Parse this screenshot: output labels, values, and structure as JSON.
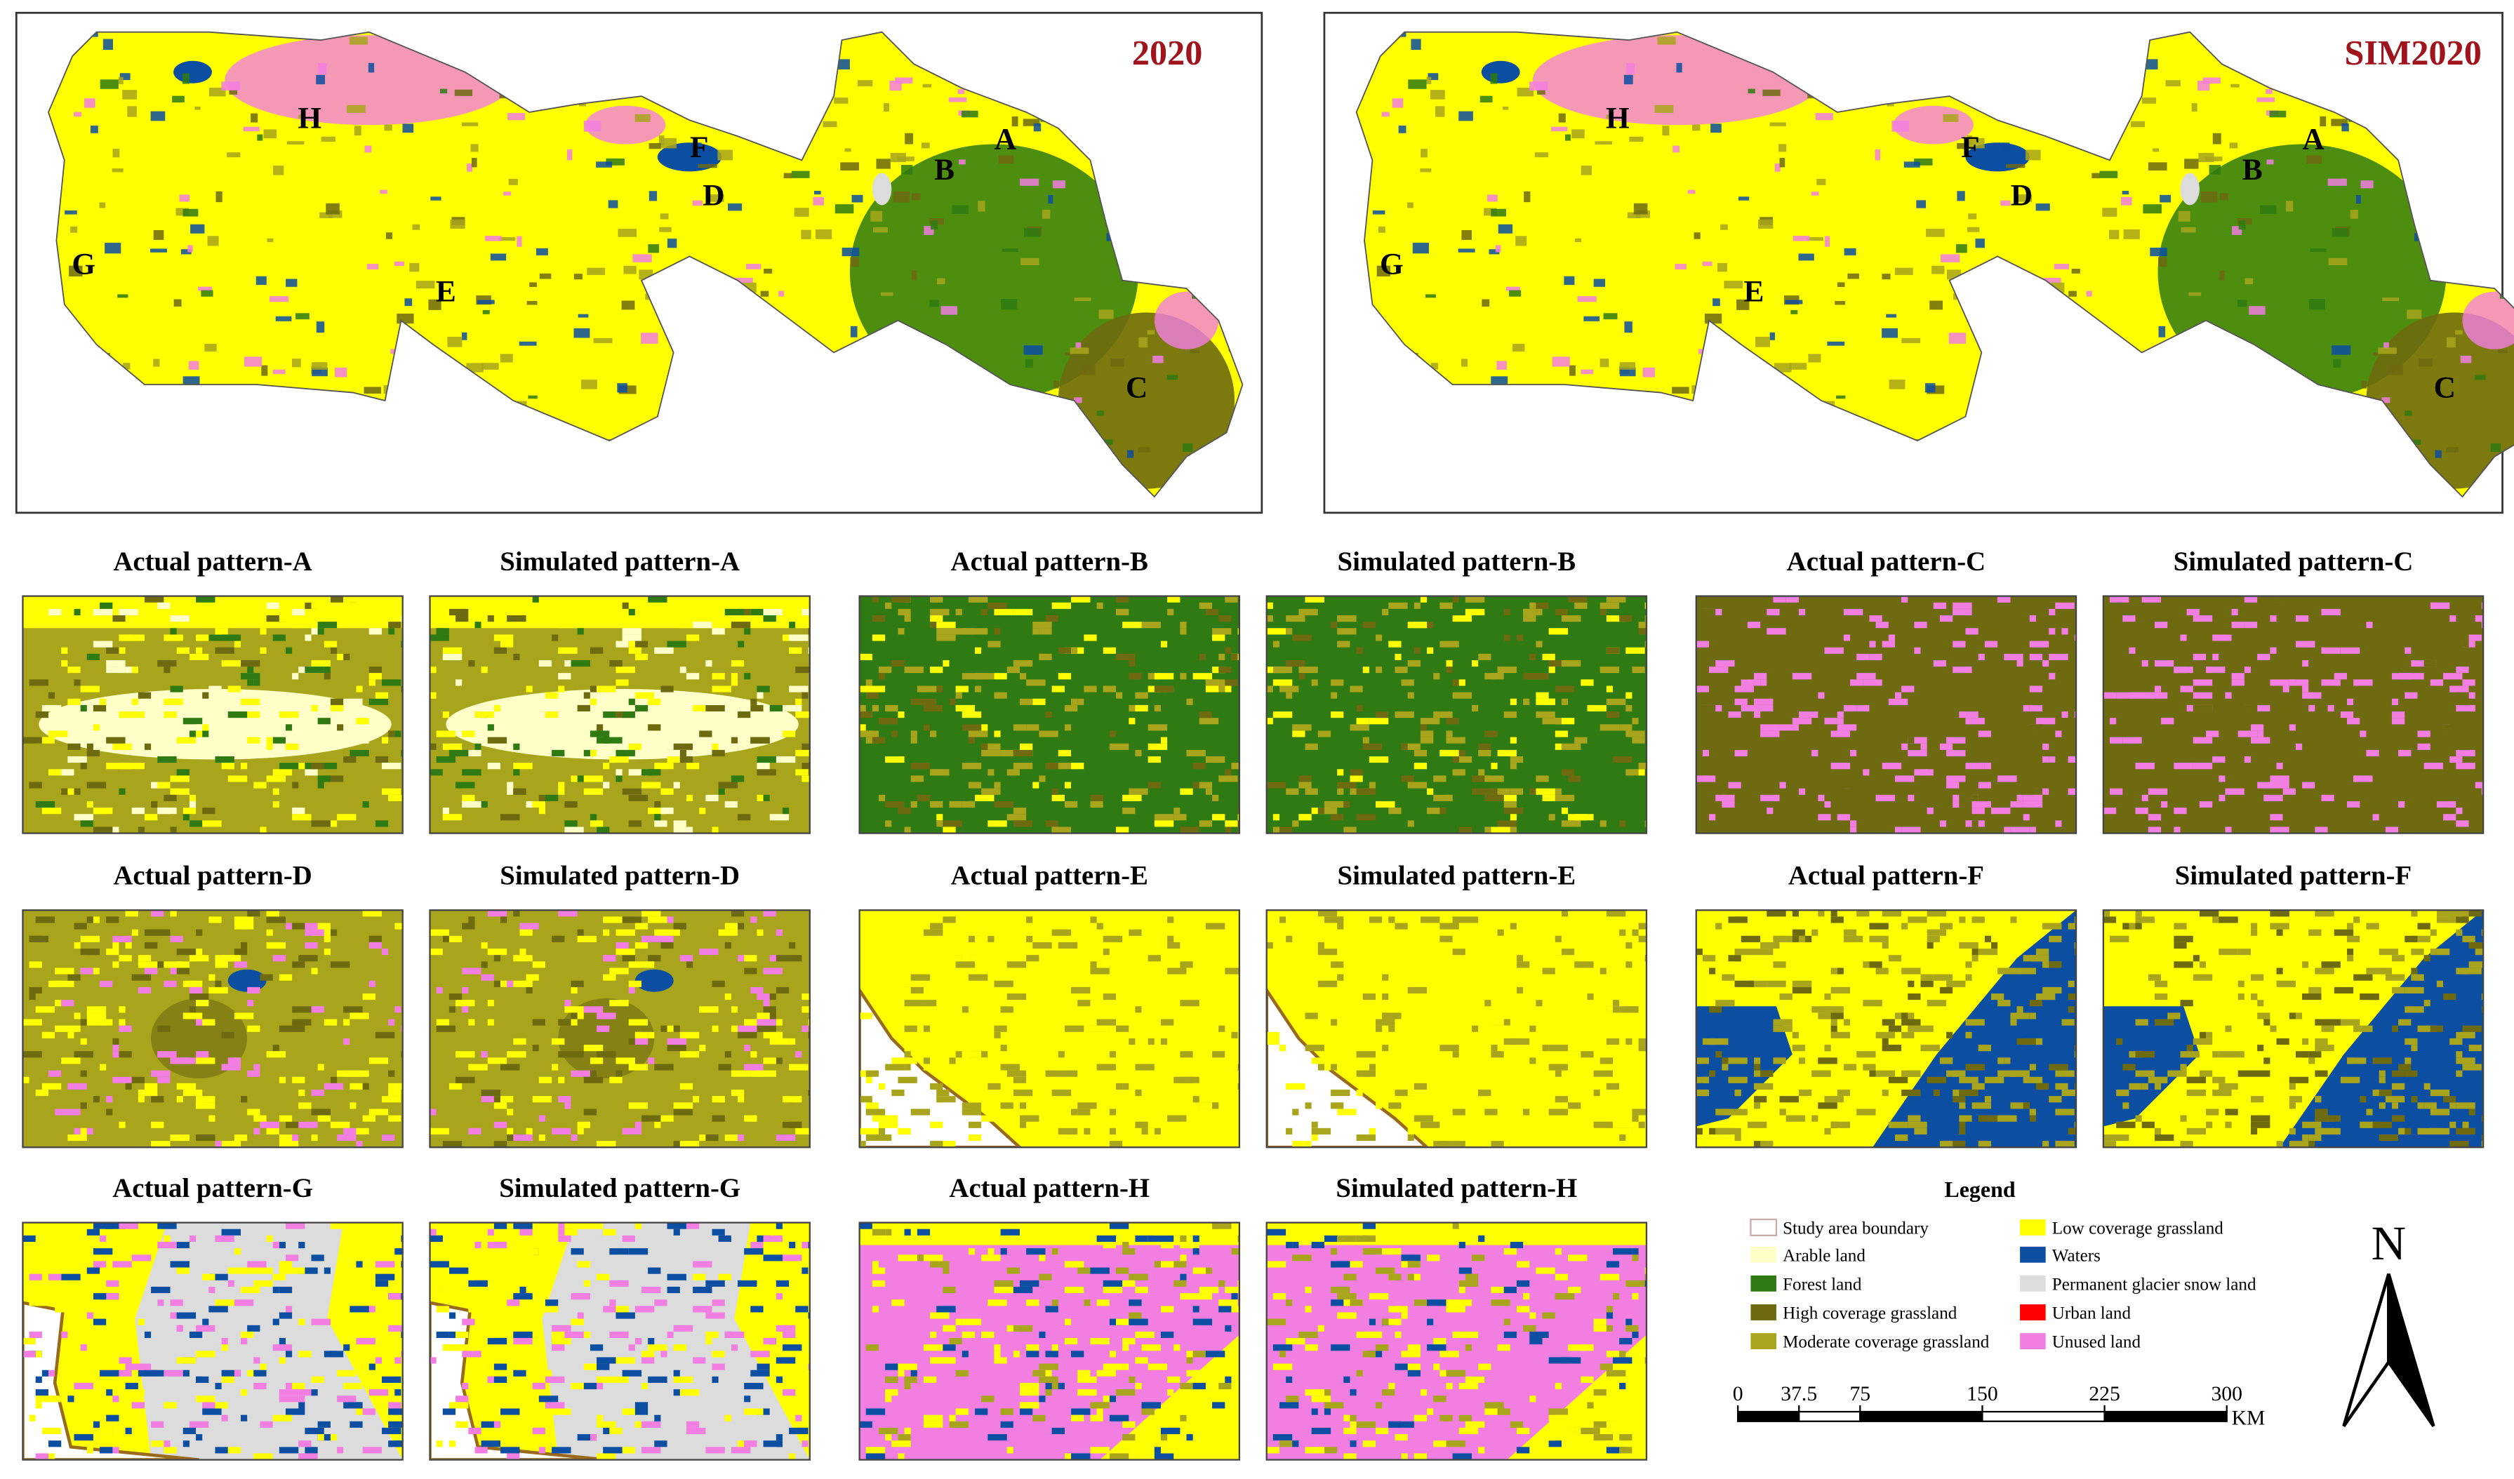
{
  "maps": [
    {
      "title": "2020",
      "labels": [
        "H",
        "A",
        "F",
        "B",
        "D",
        "G",
        "E",
        "C"
      ]
    },
    {
      "title": "SIM2020",
      "labels": [
        "H",
        "A",
        "F",
        "B",
        "D",
        "G",
        "E",
        "C"
      ]
    }
  ],
  "panels": [
    {
      "title": "Actual pattern-A"
    },
    {
      "title": "Simulated pattern-A"
    },
    {
      "title": "Actual pattern-B"
    },
    {
      "title": "Simulated pattern-B"
    },
    {
      "title": "Actual pattern-C"
    },
    {
      "title": "Simulated pattern-C"
    },
    {
      "title": "Actual pattern-D"
    },
    {
      "title": "Simulated pattern-D"
    },
    {
      "title": "Actual pattern-E"
    },
    {
      "title": "Simulated pattern-E"
    },
    {
      "title": "Actual pattern-F"
    },
    {
      "title": "Simulated pattern-F"
    },
    {
      "title": "Actual pattern-G"
    },
    {
      "title": "Simulated pattern-G"
    },
    {
      "title": "Actual pattern-H"
    },
    {
      "title": "Simulated pattern-H"
    }
  ],
  "legend": {
    "title": "Legend",
    "items": [
      {
        "label": "Study area boundary",
        "color": "#ffffff"
      },
      {
        "label": "Arable land",
        "color": "#ffffc8"
      },
      {
        "label": "Forest land",
        "color": "#2f7a12"
      },
      {
        "label": "High coverage grassland",
        "color": "#6e6a10"
      },
      {
        "label": "Moderate coverage grassland",
        "color": "#a8a41c"
      },
      {
        "label": "Low coverage grassland",
        "color": "#ffff00"
      },
      {
        "label": "Waters",
        "color": "#0b4ea2"
      },
      {
        "label": "Permanent glacier snow land",
        "color": "#dcdcdc"
      },
      {
        "label": "Urban land",
        "color": "#ff0000"
      },
      {
        "label": "Unused land",
        "color": "#f27ee2"
      }
    ]
  },
  "scale_bar": {
    "ticks": [
      0,
      37.5,
      75,
      150,
      225,
      300
    ],
    "unit": "KM"
  },
  "north_arrow": "N"
}
